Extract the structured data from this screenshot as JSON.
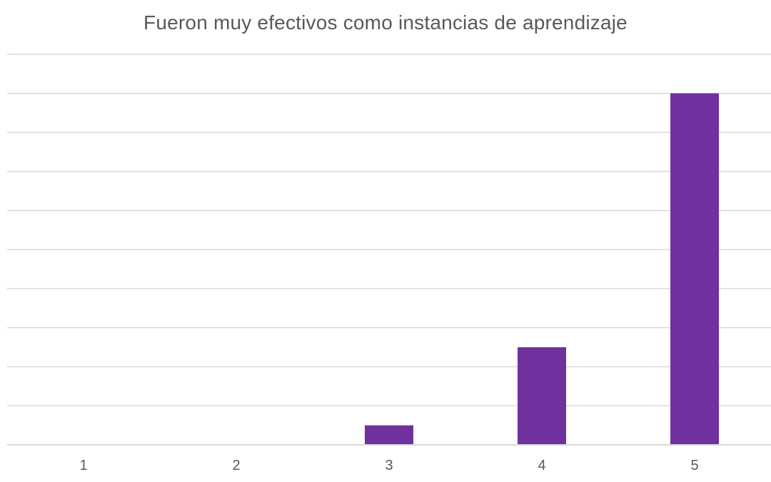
{
  "chart_data": {
    "type": "bar",
    "title": "Fueron muy efectivos como instancias de aprendizaje",
    "xlabel": "",
    "ylabel": "",
    "categories": [
      "1",
      "2",
      "3",
      "4",
      "5"
    ],
    "values": [
      0,
      0,
      1,
      5,
      18
    ],
    "ylim": [
      0,
      20
    ],
    "grid": true,
    "legend": "none",
    "bar_color": "#7030a0",
    "grid_color": "#d9d9d9",
    "text_color": "#595959"
  }
}
